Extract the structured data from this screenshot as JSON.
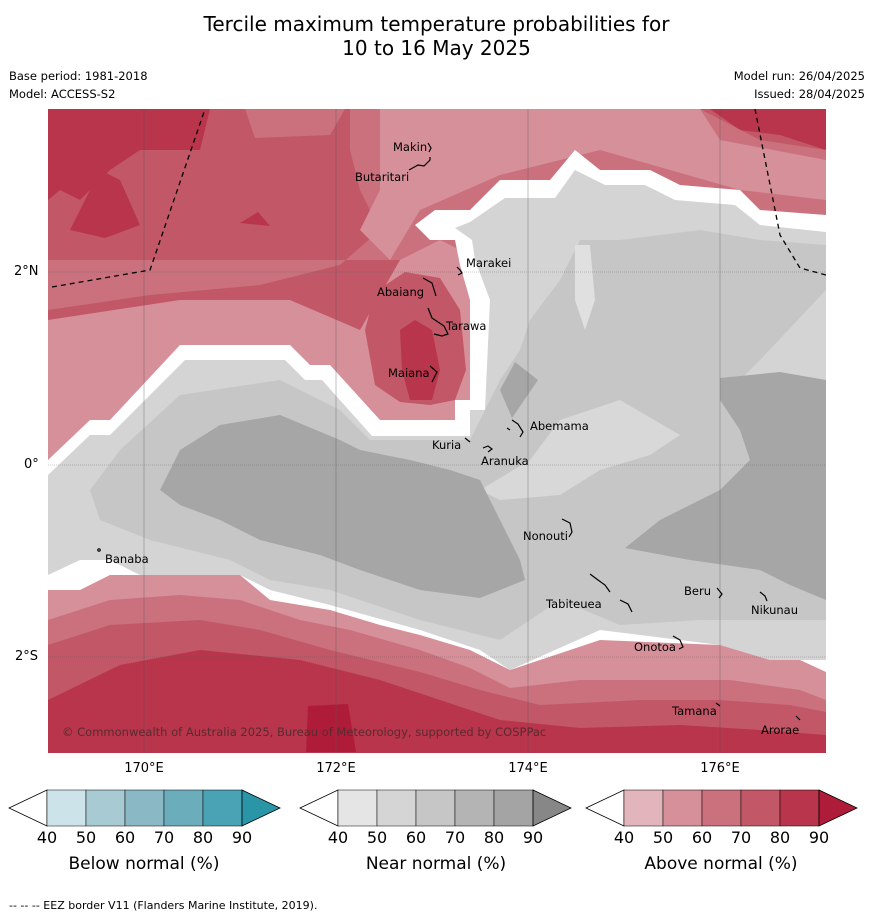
{
  "title": {
    "line1": "Tercile maximum temperature probabilities for",
    "line2": "10 to 16 May 2025"
  },
  "meta": {
    "base_period": "Base period: 1981-2018",
    "model": "Model: ACCESS-S2",
    "model_run": "Model run: 26/04/2025",
    "issued": "Issued: 28/04/2025"
  },
  "map": {
    "lat_labels": [
      "2°N",
      "0°",
      "2°S"
    ],
    "lon_labels": [
      "170°E",
      "172°E",
      "174°E",
      "176°E"
    ],
    "places": [
      {
        "name": "Makin"
      },
      {
        "name": "Butaritari"
      },
      {
        "name": "Marakei"
      },
      {
        "name": "Abaiang"
      },
      {
        "name": "Tarawa"
      },
      {
        "name": "Maiana"
      },
      {
        "name": "Abemama"
      },
      {
        "name": "Kuria"
      },
      {
        "name": "Aranuka"
      },
      {
        "name": "Nonouti"
      },
      {
        "name": "Banaba"
      },
      {
        "name": "Tabiteuea"
      },
      {
        "name": "Beru"
      },
      {
        "name": "Nikunau"
      },
      {
        "name": "Onotoa"
      },
      {
        "name": "Tamana"
      },
      {
        "name": "Arorae"
      }
    ],
    "copyright": "© Commonwealth of Australia 2025, Bureau of Meteorology, supported by COSPPac"
  },
  "colorbars": [
    {
      "label": "Below normal (%)",
      "ticks": [
        "40",
        "50",
        "60",
        "70",
        "80",
        "90"
      ],
      "colors": [
        "#cde3ea",
        "#a8cad3",
        "#8ab9c5",
        "#6cadbc",
        "#4aa3b4",
        "#2b95a8"
      ]
    },
    {
      "label": "Near normal (%)",
      "ticks": [
        "40",
        "50",
        "60",
        "70",
        "80",
        "90"
      ],
      "colors": [
        "#e5e5e5",
        "#d5d5d5",
        "#c6c6c6",
        "#b4b4b4",
        "#a4a4a4",
        "#878787"
      ]
    },
    {
      "label": "Above normal (%)",
      "ticks": [
        "40",
        "50",
        "60",
        "70",
        "80",
        "90"
      ],
      "colors": [
        "#e2b5bd",
        "#d6909a",
        "#cb717d",
        "#c25767",
        "#b8354b",
        "#af1c3a"
      ]
    }
  ],
  "footer": "--  --  -- EEZ border V11 (Flanders Marine Institute, 2019).",
  "colors": {
    "above_50": "#d6909a",
    "above_60": "#cb717d",
    "above_70": "#c25767",
    "above_80": "#b8354b",
    "above_90": "#af1c3a",
    "near_40": "#e0e0e0",
    "near_50": "#d4d4d4",
    "near_60": "#c6c6c6",
    "near_70": "#a6a6a6"
  }
}
